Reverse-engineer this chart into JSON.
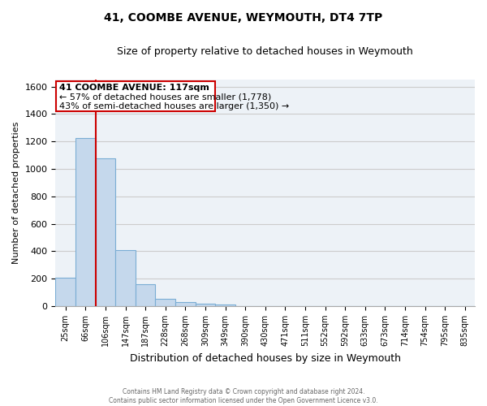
{
  "title": "41, COOMBE AVENUE, WEYMOUTH, DT4 7TP",
  "subtitle": "Size of property relative to detached houses in Weymouth",
  "xlabel": "Distribution of detached houses by size in Weymouth",
  "ylabel": "Number of detached properties",
  "footer_line1": "Contains HM Land Registry data © Crown copyright and database right 2024.",
  "footer_line2": "Contains public sector information licensed under the Open Government Licence v3.0.",
  "bar_color": "#c5d8ec",
  "bar_edge_color": "#7aadd4",
  "annotation_box_color": "#cc0000",
  "property_line_color": "#cc0000",
  "annotation_title": "41 COOMBE AVENUE: 117sqm",
  "annotation_line1": "← 57% of detached houses are smaller (1,778)",
  "annotation_line2": "43% of semi-detached houses are larger (1,350) →",
  "categories": [
    "25sqm",
    "66sqm",
    "106sqm",
    "147sqm",
    "187sqm",
    "228sqm",
    "268sqm",
    "309sqm",
    "349sqm",
    "390sqm",
    "430sqm",
    "471sqm",
    "511sqm",
    "552sqm",
    "592sqm",
    "633sqm",
    "673sqm",
    "714sqm",
    "754sqm",
    "795sqm",
    "835sqm"
  ],
  "bar_heights": [
    205,
    1225,
    1075,
    410,
    160,
    50,
    28,
    15,
    10,
    0,
    0,
    0,
    0,
    0,
    0,
    0,
    0,
    0,
    0,
    0,
    0
  ],
  "ylim": [
    0,
    1650
  ],
  "yticks": [
    0,
    200,
    400,
    600,
    800,
    1000,
    1200,
    1400,
    1600
  ],
  "grid_color": "#cccccc",
  "bg_color": "#edf2f7",
  "property_line_x": 1.5
}
